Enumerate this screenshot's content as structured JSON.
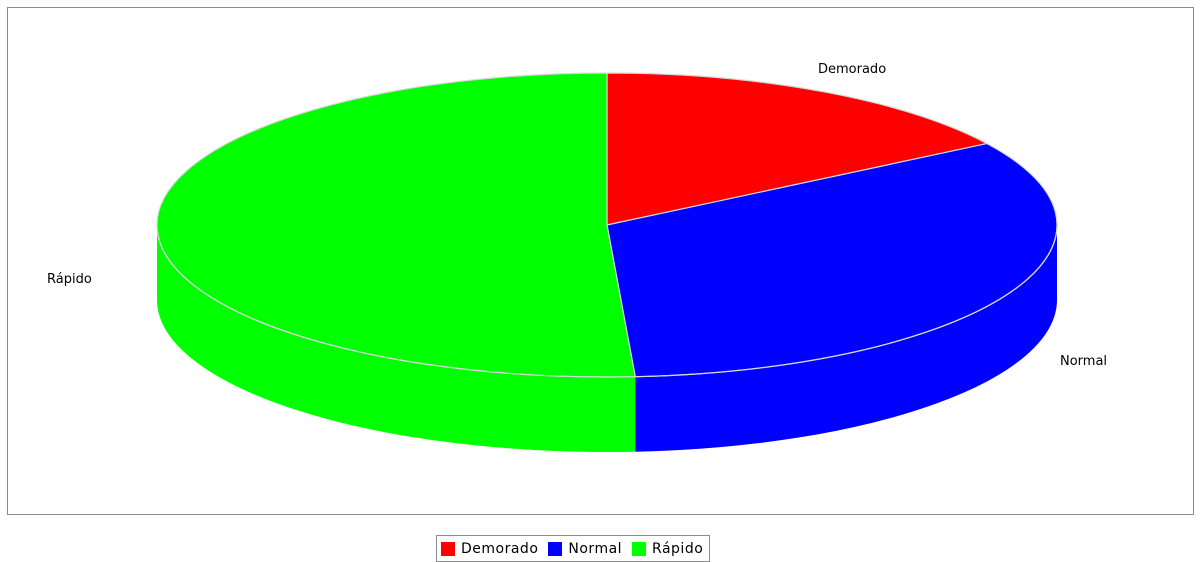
{
  "chart_data": {
    "type": "pie",
    "style": "3d",
    "title": "",
    "slices": [
      {
        "label": "Demorado",
        "value": 16,
        "color": "#ff0000"
      },
      {
        "label": "Normal",
        "value": 33,
        "color": "#0000ff"
      },
      {
        "label": "Rápido",
        "value": 51,
        "color": "#00ff00"
      }
    ],
    "legend": {
      "position": "bottom",
      "entries": [
        "Demorado",
        "Normal",
        "Rápido"
      ]
    }
  }
}
